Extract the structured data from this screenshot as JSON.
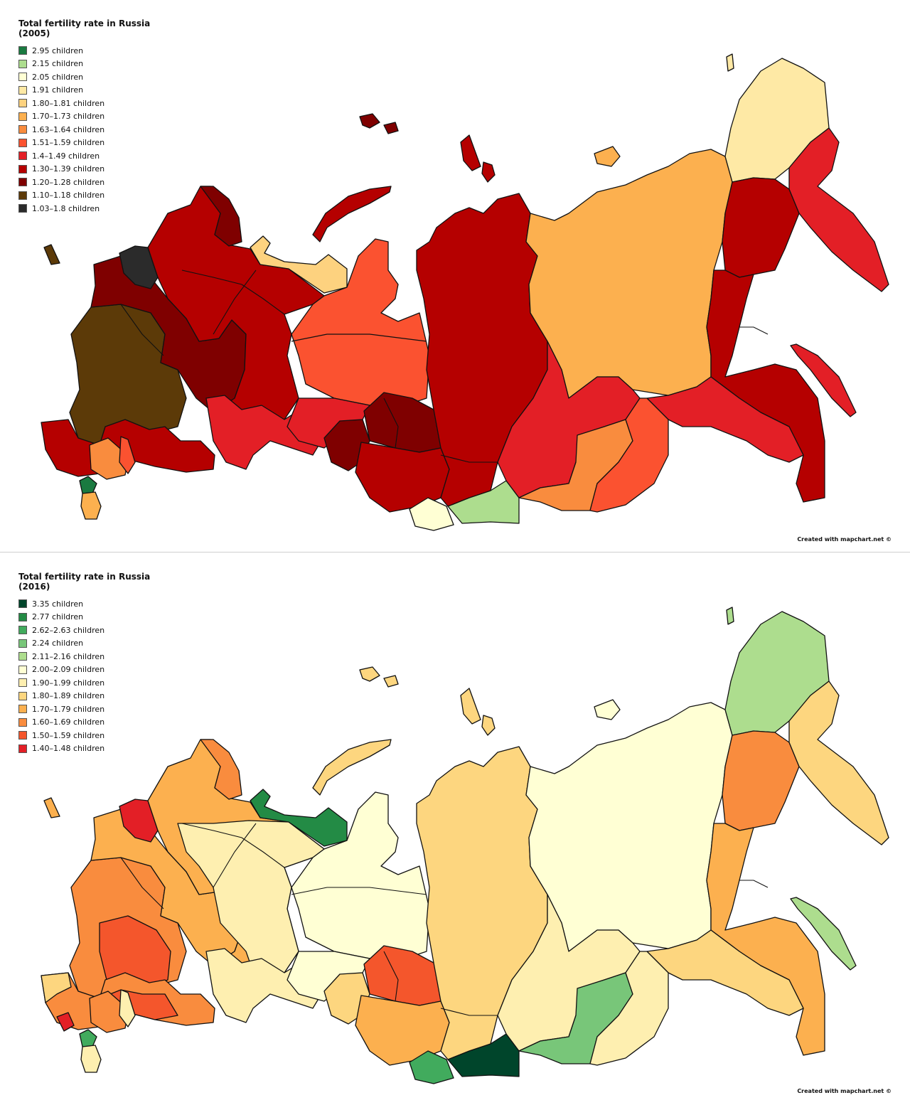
{
  "maps": [
    {
      "title_line1": "Total fertility rate in Russia",
      "title_line2": "(2005)",
      "credit": "Created with mapchart.net ©",
      "legend": [
        {
          "label": "2.95 children",
          "color": "#1a7a40"
        },
        {
          "label": "2.15 children",
          "color": "#addd8e"
        },
        {
          "label": "2.05 children",
          "color": "#ffffd4"
        },
        {
          "label": "1.91 children",
          "color": "#fee9a5"
        },
        {
          "label": "1.80–1.81 children",
          "color": "#fdd27f"
        },
        {
          "label": "1.70–1.73 children",
          "color": "#fcb04f"
        },
        {
          "label": "1.63–1.64 children",
          "color": "#f98c3e"
        },
        {
          "label": "1.51–1.59 children",
          "color": "#fb5230"
        },
        {
          "label": "1.4–1.49 children",
          "color": "#e31f26"
        },
        {
          "label": "1.30–1.39 children",
          "color": "#b50000"
        },
        {
          "label": "1.20–1.28 children",
          "color": "#7f0000"
        },
        {
          "label": "1.10–1.18 children",
          "color": "#5c3a08"
        },
        {
          "label": "1.03–1.8 children",
          "color": "#2b2b2b"
        }
      ]
    },
    {
      "title_line1": "Total fertility rate in Russia",
      "title_line2": "(2016)",
      "credit": "Created with mapchart.net ©",
      "legend": [
        {
          "label": "3.35 children",
          "color": "#00452b"
        },
        {
          "label": "2.77 children",
          "color": "#238b45"
        },
        {
          "label": "2.62–2.63 children",
          "color": "#41ab5d"
        },
        {
          "label": "2.24 children",
          "color": "#78c679"
        },
        {
          "label": "2.11–2.16 children",
          "color": "#addd8e"
        },
        {
          "label": "2.00–2.09 children",
          "color": "#ffffd4"
        },
        {
          "label": "1.90–1.99 children",
          "color": "#feefb0"
        },
        {
          "label": "1.80–1.89 children",
          "color": "#fdd67f"
        },
        {
          "label": "1.70–1.79 children",
          "color": "#fcb04f"
        },
        {
          "label": "1.60–1.69 children",
          "color": "#f98c3e"
        },
        {
          "label": "1.50–1.59 children",
          "color": "#f4562c"
        },
        {
          "label": "1.40–1.48 children",
          "color": "#e31f26"
        }
      ]
    }
  ]
}
